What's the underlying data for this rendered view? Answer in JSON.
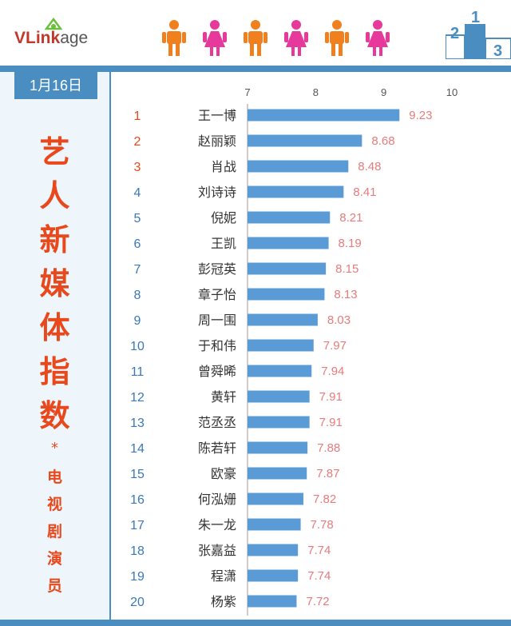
{
  "header": {
    "logo_text": "VLinkage",
    "logo_text_bold": "VLink",
    "logo_text_rest": "age",
    "podium_labels": [
      "2",
      "1",
      "3"
    ]
  },
  "sidebar": {
    "date": "1月16日",
    "title_chars": [
      "艺",
      "人",
      "新",
      "媒",
      "体",
      "指",
      "数"
    ],
    "star": "*",
    "subtitle_chars": [
      "电",
      "视",
      "剧",
      "演",
      "员"
    ]
  },
  "colors": {
    "accent": "#4a8ec1",
    "bar": "#5b9bd5",
    "title": "#e8481b",
    "rank_top": "#e8481b",
    "rank_rest": "#3a78b5",
    "value_label": "#e87b7b",
    "male_icon": "#f07f1e",
    "female_icon": "#e7399b"
  },
  "people_icons": [
    "male",
    "female",
    "male",
    "female",
    "male",
    "female"
  ],
  "chart_data": {
    "type": "bar",
    "orientation": "horizontal",
    "title": "",
    "xlabel": "",
    "ylabel": "",
    "xlim": [
      7,
      10
    ],
    "ticks": [
      "7",
      "8",
      "9",
      "10"
    ],
    "grid": false,
    "ranks": [
      "1",
      "2",
      "3",
      "4",
      "5",
      "6",
      "7",
      "8",
      "9",
      "10",
      "11",
      "12",
      "13",
      "14",
      "15",
      "16",
      "17",
      "18",
      "19",
      "20"
    ],
    "categories": [
      "王一博",
      "赵丽颖",
      "肖战",
      "刘诗诗",
      "倪妮",
      "王凯",
      "彭冠英",
      "章子怡",
      "周一围",
      "于和伟",
      "曾舜晞",
      "黄轩",
      "范丞丞",
      "陈若轩",
      "欧豪",
      "何泓姗",
      "朱一龙",
      "张嘉益",
      "程潇",
      "杨紫"
    ],
    "values": [
      9.23,
      8.68,
      8.48,
      8.41,
      8.21,
      8.19,
      8.15,
      8.13,
      8.03,
      7.97,
      7.94,
      7.91,
      7.91,
      7.88,
      7.87,
      7.82,
      7.78,
      7.74,
      7.74,
      7.72
    ],
    "value_labels": [
      "9.23",
      "8.68",
      "8.48",
      "8.41",
      "8.21",
      "8.19",
      "8.15",
      "8.13",
      "8.03",
      "7.97",
      "7.94",
      "7.91",
      "7.91",
      "7.88",
      "7.87",
      "7.82",
      "7.78",
      "7.74",
      "7.74",
      "7.72"
    ]
  }
}
